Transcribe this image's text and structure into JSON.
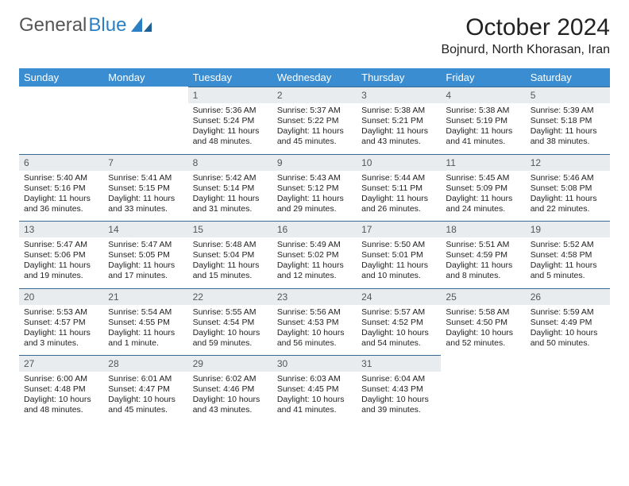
{
  "logo": {
    "text1": "General",
    "text2": "Blue"
  },
  "title": "October 2024",
  "location": "Bojnurd, North Khorasan, Iran",
  "colors": {
    "header_bg": "#3a8dd0",
    "header_text": "#ffffff",
    "daynum_bg": "#e9ecef",
    "daynum_border": "#3a6a93",
    "logo_gray": "#555555",
    "logo_blue": "#2b7fc4"
  },
  "weekdays": [
    "Sunday",
    "Monday",
    "Tuesday",
    "Wednesday",
    "Thursday",
    "Friday",
    "Saturday"
  ],
  "weeks": [
    [
      {
        "n": "",
        "sr": "",
        "ss": "",
        "dl": ""
      },
      {
        "n": "",
        "sr": "",
        "ss": "",
        "dl": ""
      },
      {
        "n": "1",
        "sr": "Sunrise: 5:36 AM",
        "ss": "Sunset: 5:24 PM",
        "dl": "Daylight: 11 hours and 48 minutes."
      },
      {
        "n": "2",
        "sr": "Sunrise: 5:37 AM",
        "ss": "Sunset: 5:22 PM",
        "dl": "Daylight: 11 hours and 45 minutes."
      },
      {
        "n": "3",
        "sr": "Sunrise: 5:38 AM",
        "ss": "Sunset: 5:21 PM",
        "dl": "Daylight: 11 hours and 43 minutes."
      },
      {
        "n": "4",
        "sr": "Sunrise: 5:38 AM",
        "ss": "Sunset: 5:19 PM",
        "dl": "Daylight: 11 hours and 41 minutes."
      },
      {
        "n": "5",
        "sr": "Sunrise: 5:39 AM",
        "ss": "Sunset: 5:18 PM",
        "dl": "Daylight: 11 hours and 38 minutes."
      }
    ],
    [
      {
        "n": "6",
        "sr": "Sunrise: 5:40 AM",
        "ss": "Sunset: 5:16 PM",
        "dl": "Daylight: 11 hours and 36 minutes."
      },
      {
        "n": "7",
        "sr": "Sunrise: 5:41 AM",
        "ss": "Sunset: 5:15 PM",
        "dl": "Daylight: 11 hours and 33 minutes."
      },
      {
        "n": "8",
        "sr": "Sunrise: 5:42 AM",
        "ss": "Sunset: 5:14 PM",
        "dl": "Daylight: 11 hours and 31 minutes."
      },
      {
        "n": "9",
        "sr": "Sunrise: 5:43 AM",
        "ss": "Sunset: 5:12 PM",
        "dl": "Daylight: 11 hours and 29 minutes."
      },
      {
        "n": "10",
        "sr": "Sunrise: 5:44 AM",
        "ss": "Sunset: 5:11 PM",
        "dl": "Daylight: 11 hours and 26 minutes."
      },
      {
        "n": "11",
        "sr": "Sunrise: 5:45 AM",
        "ss": "Sunset: 5:09 PM",
        "dl": "Daylight: 11 hours and 24 minutes."
      },
      {
        "n": "12",
        "sr": "Sunrise: 5:46 AM",
        "ss": "Sunset: 5:08 PM",
        "dl": "Daylight: 11 hours and 22 minutes."
      }
    ],
    [
      {
        "n": "13",
        "sr": "Sunrise: 5:47 AM",
        "ss": "Sunset: 5:06 PM",
        "dl": "Daylight: 11 hours and 19 minutes."
      },
      {
        "n": "14",
        "sr": "Sunrise: 5:47 AM",
        "ss": "Sunset: 5:05 PM",
        "dl": "Daylight: 11 hours and 17 minutes."
      },
      {
        "n": "15",
        "sr": "Sunrise: 5:48 AM",
        "ss": "Sunset: 5:04 PM",
        "dl": "Daylight: 11 hours and 15 minutes."
      },
      {
        "n": "16",
        "sr": "Sunrise: 5:49 AM",
        "ss": "Sunset: 5:02 PM",
        "dl": "Daylight: 11 hours and 12 minutes."
      },
      {
        "n": "17",
        "sr": "Sunrise: 5:50 AM",
        "ss": "Sunset: 5:01 PM",
        "dl": "Daylight: 11 hours and 10 minutes."
      },
      {
        "n": "18",
        "sr": "Sunrise: 5:51 AM",
        "ss": "Sunset: 4:59 PM",
        "dl": "Daylight: 11 hours and 8 minutes."
      },
      {
        "n": "19",
        "sr": "Sunrise: 5:52 AM",
        "ss": "Sunset: 4:58 PM",
        "dl": "Daylight: 11 hours and 5 minutes."
      }
    ],
    [
      {
        "n": "20",
        "sr": "Sunrise: 5:53 AM",
        "ss": "Sunset: 4:57 PM",
        "dl": "Daylight: 11 hours and 3 minutes."
      },
      {
        "n": "21",
        "sr": "Sunrise: 5:54 AM",
        "ss": "Sunset: 4:55 PM",
        "dl": "Daylight: 11 hours and 1 minute."
      },
      {
        "n": "22",
        "sr": "Sunrise: 5:55 AM",
        "ss": "Sunset: 4:54 PM",
        "dl": "Daylight: 10 hours and 59 minutes."
      },
      {
        "n": "23",
        "sr": "Sunrise: 5:56 AM",
        "ss": "Sunset: 4:53 PM",
        "dl": "Daylight: 10 hours and 56 minutes."
      },
      {
        "n": "24",
        "sr": "Sunrise: 5:57 AM",
        "ss": "Sunset: 4:52 PM",
        "dl": "Daylight: 10 hours and 54 minutes."
      },
      {
        "n": "25",
        "sr": "Sunrise: 5:58 AM",
        "ss": "Sunset: 4:50 PM",
        "dl": "Daylight: 10 hours and 52 minutes."
      },
      {
        "n": "26",
        "sr": "Sunrise: 5:59 AM",
        "ss": "Sunset: 4:49 PM",
        "dl": "Daylight: 10 hours and 50 minutes."
      }
    ],
    [
      {
        "n": "27",
        "sr": "Sunrise: 6:00 AM",
        "ss": "Sunset: 4:48 PM",
        "dl": "Daylight: 10 hours and 48 minutes."
      },
      {
        "n": "28",
        "sr": "Sunrise: 6:01 AM",
        "ss": "Sunset: 4:47 PM",
        "dl": "Daylight: 10 hours and 45 minutes."
      },
      {
        "n": "29",
        "sr": "Sunrise: 6:02 AM",
        "ss": "Sunset: 4:46 PM",
        "dl": "Daylight: 10 hours and 43 minutes."
      },
      {
        "n": "30",
        "sr": "Sunrise: 6:03 AM",
        "ss": "Sunset: 4:45 PM",
        "dl": "Daylight: 10 hours and 41 minutes."
      },
      {
        "n": "31",
        "sr": "Sunrise: 6:04 AM",
        "ss": "Sunset: 4:43 PM",
        "dl": "Daylight: 10 hours and 39 minutes."
      },
      {
        "n": "",
        "sr": "",
        "ss": "",
        "dl": ""
      },
      {
        "n": "",
        "sr": "",
        "ss": "",
        "dl": ""
      }
    ]
  ]
}
